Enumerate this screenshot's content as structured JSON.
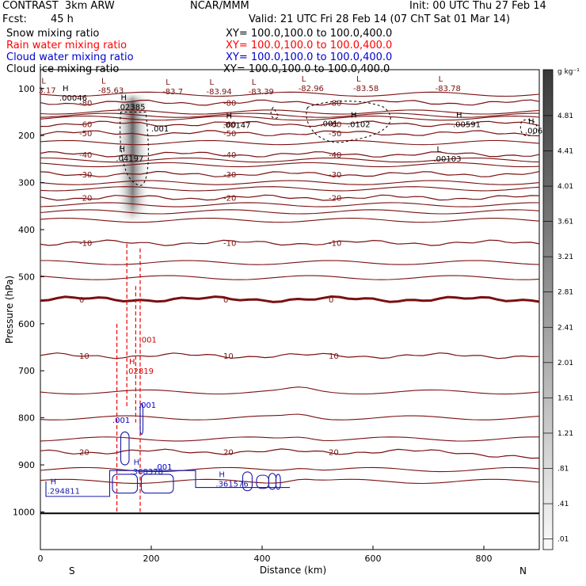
{
  "header": {
    "model": "CONTRAST  3km ARW",
    "org": "NCAR/MMM",
    "init": "Init: 00 UTC Thu 27 Feb 14",
    "fcst_label": "Fcst:",
    "fcst_value": "45 h",
    "valid": "Valid: 21 UTC Fri 28 Feb 14 (07 ChT Sat 01 Mar 14)"
  },
  "fields": [
    {
      "label": "Snow mixing ratio",
      "xy": "XY= 100.0,100.0 to 100.0,400.0",
      "color": "#000000"
    },
    {
      "label": "Rain water mixing ratio",
      "xy": "XY= 100.0,100.0 to 100.0,400.0",
      "color": "#ff0000"
    },
    {
      "label": "Cloud water mixing ratio",
      "xy": "XY= 100.0,100.0 to 100.0,400.0",
      "color": "#0000cc"
    },
    {
      "label": "Cloud ice mixing ratio",
      "xy": "XY= 100.0,100.0 to 100.0,400.0",
      "color": "#000000"
    }
  ],
  "chart_data": {
    "type": "cross-section",
    "xlabel": "Distance (km)",
    "ylabel": "Pressure (hPa)",
    "x_ticks": [
      0,
      200,
      400,
      600,
      800
    ],
    "xlim": [
      0,
      900
    ],
    "y_ticks": [
      100,
      200,
      300,
      400,
      500,
      600,
      700,
      800,
      900,
      1000
    ],
    "ylim": [
      1080,
      60
    ],
    "x_endpoints": {
      "left": "S",
      "right": "N"
    },
    "colorbar": {
      "unit": "g kg⁻¹",
      "labels": [
        "4.81",
        "4.41",
        "4.01",
        "3.61",
        "3.21",
        "2.81",
        "2.41",
        "2.01",
        "1.61",
        "1.21",
        ".81",
        ".41",
        ".01"
      ]
    },
    "temperature_contours": [
      {
        "pressure": 130,
        "label": "-80"
      },
      {
        "pressure": 175,
        "label": "-60"
      },
      {
        "pressure": 195,
        "label": "-50"
      },
      {
        "pressure": 240,
        "label": "-40"
      },
      {
        "pressure": 282,
        "label": "-30"
      },
      {
        "pressure": 332,
        "label": "-20"
      },
      {
        "pressure": 428,
        "label": "-10"
      },
      {
        "pressure": 548,
        "label": "0"
      },
      {
        "pressure": 668,
        "label": "10"
      },
      {
        "pressure": 872,
        "label": "20"
      }
    ],
    "extrema_labels": [
      {
        "x": 2,
        "p": 101,
        "type": "L",
        "value": "3.17"
      },
      {
        "x": 40,
        "p": 117,
        "type": "H",
        "value": ".00046"
      },
      {
        "x": 110,
        "p": 101,
        "type": "L",
        "value": "-85.63"
      },
      {
        "x": 145,
        "p": 137,
        "type": "H",
        "value": ".02385"
      },
      {
        "x": 226,
        "p": 104,
        "type": "L",
        "value": "-83.7"
      },
      {
        "x": 305,
        "p": 104,
        "type": "L",
        "value": "-83.94"
      },
      {
        "x": 381,
        "p": 104,
        "type": "L",
        "value": "-83.39"
      },
      {
        "x": 471,
        "p": 97,
        "type": "L",
        "value": "-82.96"
      },
      {
        "x": 570,
        "p": 97,
        "type": "L",
        "value": "-83.58"
      },
      {
        "x": 718,
        "p": 97,
        "type": "L",
        "value": "-83.78"
      },
      {
        "x": 335,
        "p": 175,
        "type": "H",
        "value": ".00147"
      },
      {
        "x": 560,
        "p": 174,
        "type": "H",
        "value": ".0102"
      },
      {
        "x": 750,
        "p": 174,
        "type": "H",
        "value": ".00591"
      },
      {
        "x": 880,
        "p": 187,
        "type": "H",
        "value": ".00618"
      },
      {
        "x": 142,
        "p": 246,
        "type": "H",
        "value": ".04197"
      },
      {
        "x": 715,
        "p": 247,
        "type": "L",
        "value": ".00103"
      },
      {
        "x": 160,
        "p": 698,
        "type": "H",
        "value": ".02819"
      },
      {
        "x": 168,
        "p": 912,
        "type": "H",
        "value": ".368378"
      },
      {
        "x": 18,
        "p": 953,
        "type": "H",
        "value": ".294811"
      },
      {
        "x": 322,
        "p": 938,
        "type": "H",
        "value": ".361576"
      }
    ],
    "small_labels": [
      {
        "x": 200,
        "p": 191,
        "text": ".001",
        "color": "#000000"
      },
      {
        "x": 505,
        "p": 180,
        "text": ".001",
        "color": "#000000"
      },
      {
        "x": 178,
        "p": 640,
        "text": ".001",
        "color": "#cc0000"
      },
      {
        "x": 177,
        "p": 779,
        "text": ".001",
        "color": "#0000cc"
      },
      {
        "x": 130,
        "p": 811,
        "text": ".001",
        "color": "#0000cc"
      },
      {
        "x": 206,
        "p": 910,
        "text": ".001",
        "color": "#0000cc"
      }
    ],
    "rain_lines_x": [
      138,
      156,
      172,
      180
    ],
    "rain_lines_p": [
      [
        600,
        1000
      ],
      [
        430,
        780
      ],
      [
        520,
        810
      ],
      [
        440,
        1000
      ]
    ]
  }
}
